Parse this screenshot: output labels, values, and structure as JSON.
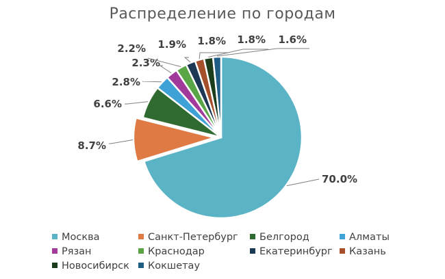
{
  "colors": {
    "title": "#595959",
    "label": "#404040",
    "leader": "#7f7f7f"
  },
  "chart_data": {
    "type": "pie",
    "title": "Распределение по городам",
    "legend_position": "bottom",
    "start_angle_deg": 0,
    "direction": "clockwise",
    "slices": [
      {
        "label": "Москва",
        "value": 70.0,
        "value_label": "70.0%",
        "color": "#5bb3c6",
        "exploded": false
      },
      {
        "label": "Санкт-Петербург",
        "value": 8.7,
        "value_label": "8.7%",
        "color": "#e07a44",
        "exploded": true
      },
      {
        "label": "Белгород",
        "value": 6.6,
        "value_label": "6.6%",
        "color": "#2f6b31",
        "exploded": false
      },
      {
        "label": "Алматы",
        "value": 2.8,
        "value_label": "2.8%",
        "color": "#3ea2d6",
        "exploded": false
      },
      {
        "label": "Рязан",
        "value": 2.3,
        "value_label": "2.3%",
        "color": "#a13a9a",
        "exploded": false
      },
      {
        "label": "Краснодар",
        "value": 2.2,
        "value_label": "2.2%",
        "color": "#5aa647",
        "exploded": false
      },
      {
        "label": "Екатеринбург",
        "value": 1.9,
        "value_label": "1.9%",
        "color": "#1c3854",
        "exploded": false
      },
      {
        "label": "Казань",
        "value": 1.8,
        "value_label": "1.8%",
        "color": "#a5502a",
        "exploded": false
      },
      {
        "label": "Новосибирск",
        "value": 1.8,
        "value_label": "1.8%",
        "color": "#1b3d1b",
        "exploded": false
      },
      {
        "label": "Кокшетау",
        "value": 1.6,
        "value_label": "1.6%",
        "color": "#1f5d85",
        "exploded": false
      }
    ]
  }
}
